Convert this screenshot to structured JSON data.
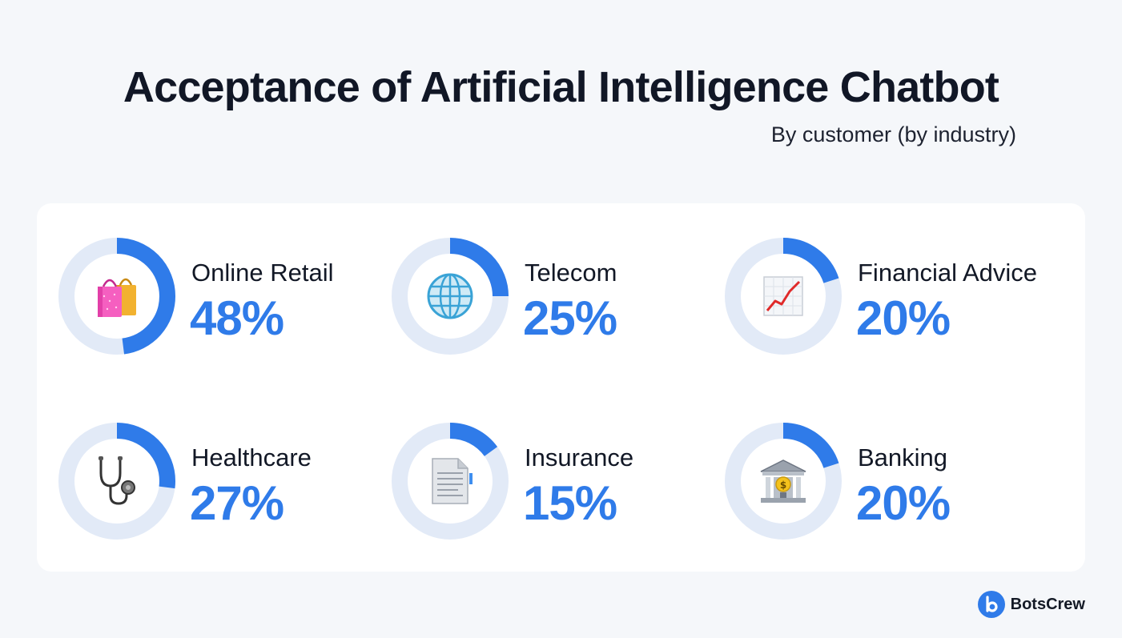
{
  "header": {
    "title": "Acceptance of Artificial Intelligence Chatbot",
    "subtitle": "By customer (by industry)"
  },
  "brand": {
    "name": "BotsCrew",
    "logo_letter": "b"
  },
  "colors": {
    "accent": "#2f7be9",
    "track": "#e2eaf7",
    "background": "#f5f7fa",
    "card": "#ffffff"
  },
  "chart_data": {
    "type": "pie",
    "title": "Acceptance of Artificial Intelligence Chatbot",
    "subtitle": "By customer (by industry)",
    "unit": "%",
    "categories": [
      "Online Retail",
      "Telecom",
      "Financial Advice",
      "Healthcare",
      "Insurance",
      "Banking"
    ],
    "values": [
      48,
      25,
      20,
      27,
      15,
      20
    ],
    "value_labels": [
      "48%",
      "25%",
      "20%",
      "27%",
      "15%",
      "20%"
    ],
    "icons": [
      "shopping-bags-icon",
      "globe-icon",
      "chart-increasing-icon",
      "stethoscope-icon",
      "document-icon",
      "bank-icon"
    ],
    "layout": "grid 3 columns x 2 rows"
  }
}
